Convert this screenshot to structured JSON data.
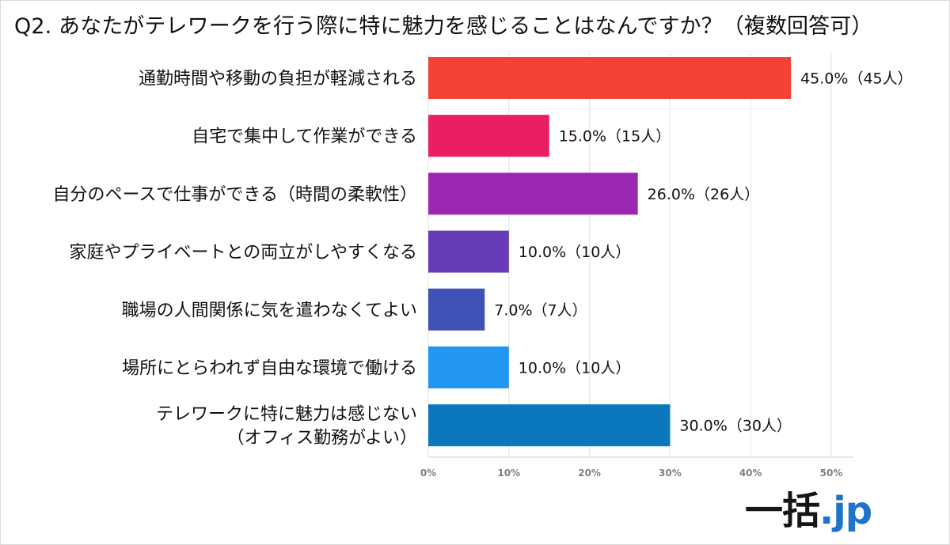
{
  "header": {
    "title": "Q2. あなたがテレワークを行う際に特に魅力を感じることはなんですか？（複数回答可）"
  },
  "logo": {
    "main": "一括",
    "accent": ".jp"
  },
  "colors": {
    "bars": [
      "#f44336",
      "#e91e63",
      "#9c27b0",
      "#673ab7",
      "#3f51b5",
      "#2196f3",
      "#0b78be"
    ],
    "grid": "#e3e3e3",
    "axis": "#cfcfcf",
    "logo_accent": "#1f73c9"
  },
  "chart_data": {
    "type": "bar",
    "orientation": "horizontal",
    "title": "Q2. あなたがテレワークを行う際に特に魅力を感じることはなんですか？（複数回答可）",
    "xlabel": "",
    "ylabel": "",
    "xlim": [
      0,
      50
    ],
    "grid": true,
    "categories": [
      [
        "通勤時間や移動の負担が軽減される"
      ],
      [
        "自宅で集中して作業ができる"
      ],
      [
        "自分のペースで仕事ができる（時間の柔軟性）"
      ],
      [
        "家庭やプライベートとの両立がしやすくなる"
      ],
      [
        "職場の人間関係に気を遣わなくてよい"
      ],
      [
        "場所にとらわれず自由な環境で働ける"
      ],
      [
        "テレワークに特に魅力は感じない",
        "（オフィス勤務がよい）"
      ]
    ],
    "values": [
      45.0,
      15.0,
      26.0,
      10.0,
      7.0,
      10.0,
      30.0
    ],
    "data_labels": [
      "45.0%（45人）",
      "15.0%（15人）",
      "26.0%（26人）",
      "10.0%（10人）",
      "7.0%（7人）",
      "10.0%（10人）",
      "30.0%（30人）"
    ],
    "x_ticks": [
      0,
      10,
      20,
      30,
      40,
      50
    ],
    "x_tick_labels": [
      "0%",
      "10%",
      "20%",
      "30%",
      "40%",
      "50%"
    ]
  }
}
